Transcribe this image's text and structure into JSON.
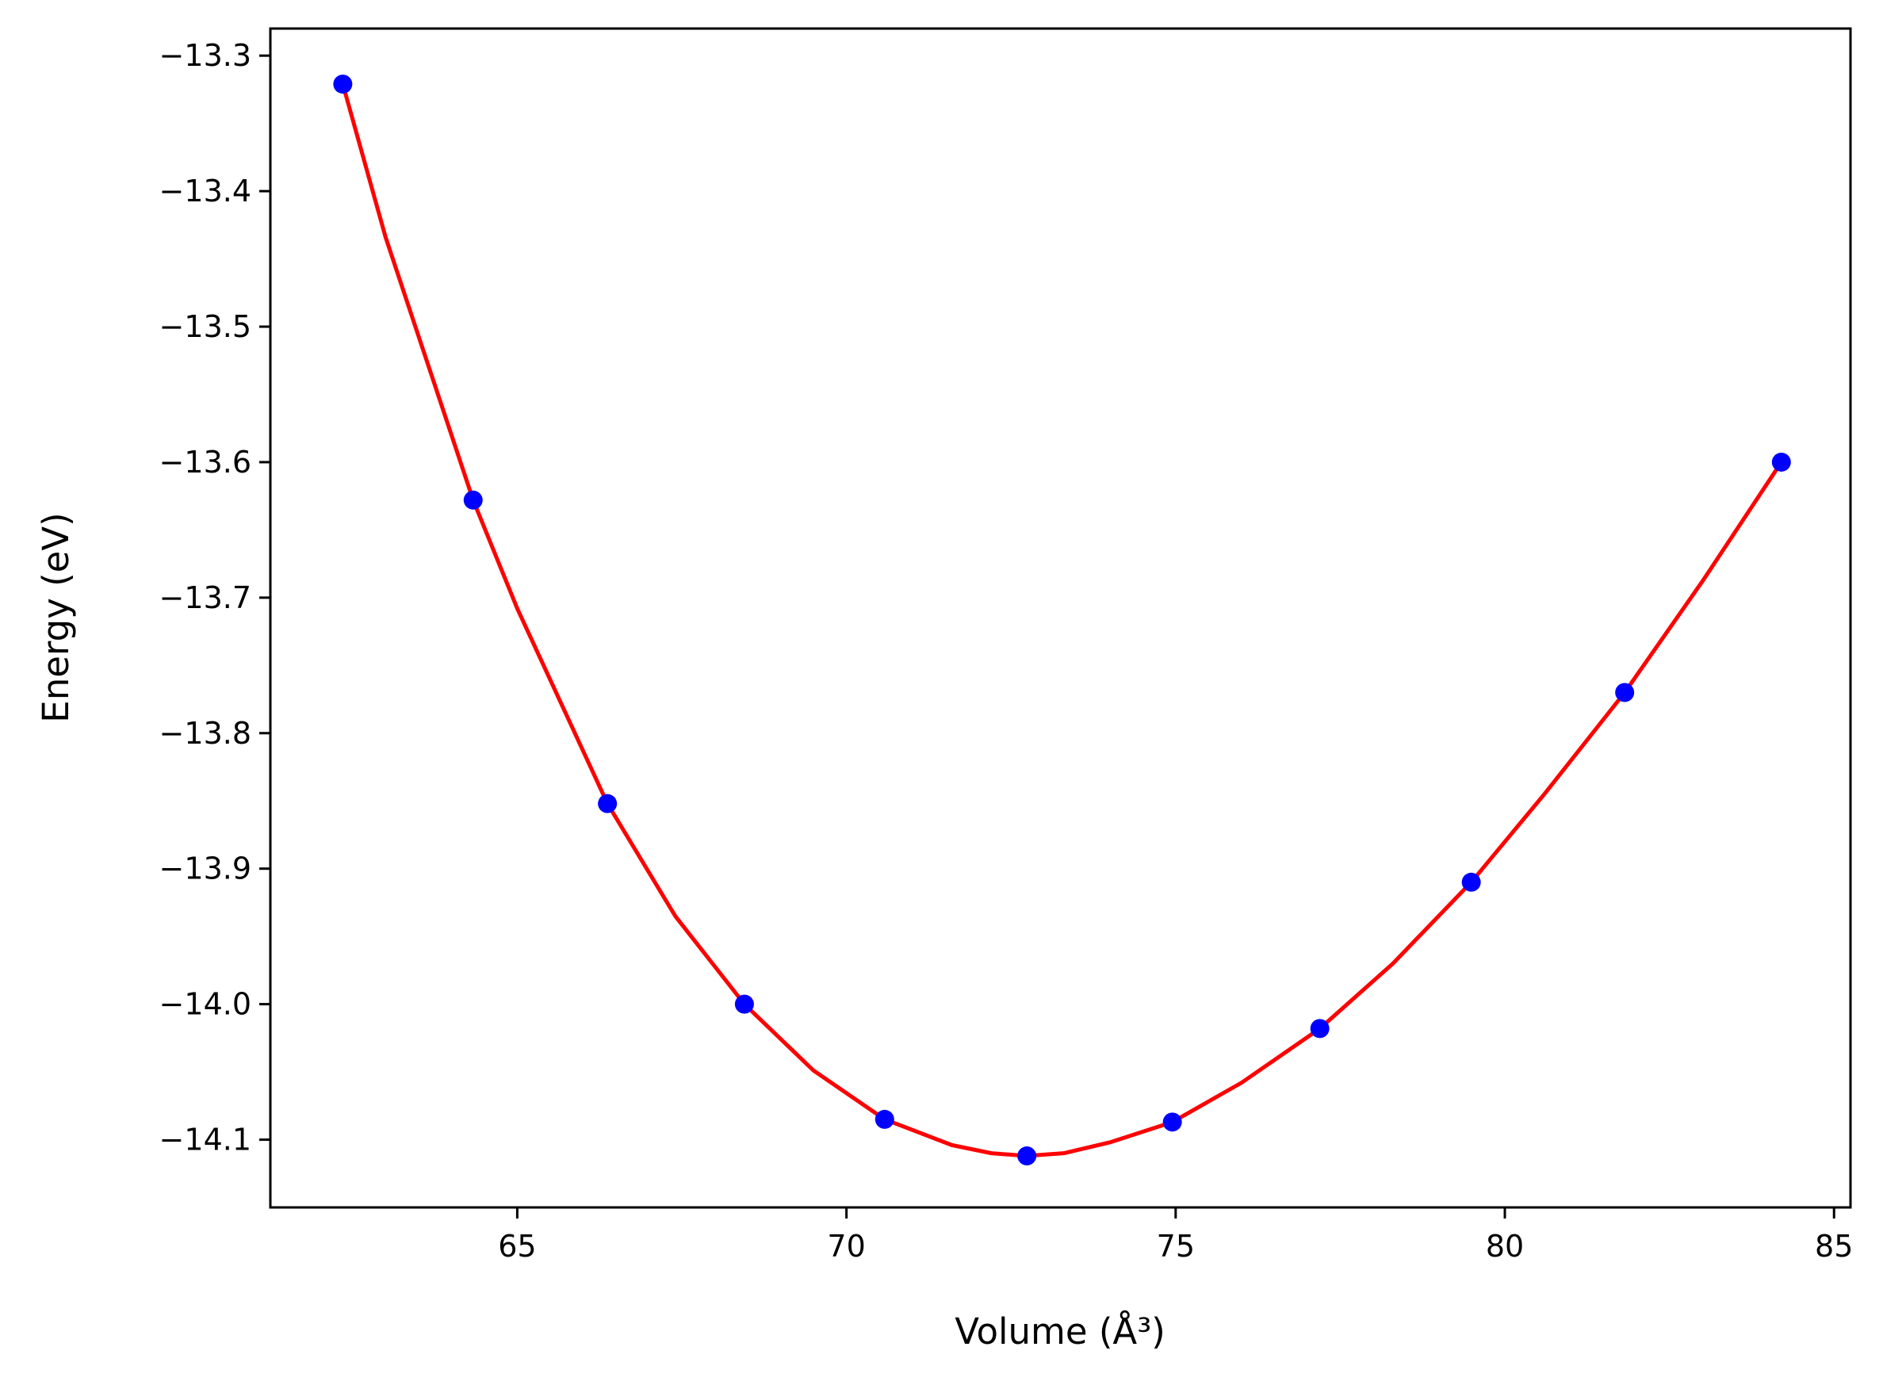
{
  "chart_data": {
    "type": "scatter",
    "xlabel": "Volume (Å³)",
    "ylabel": "Energy (eV)",
    "xlim": [
      61.25,
      85.25
    ],
    "ylim": [
      -14.15,
      -13.28
    ],
    "x_ticks": [
      65,
      70,
      75,
      80,
      85
    ],
    "y_ticks": [
      -13.3,
      -13.4,
      -13.5,
      -13.6,
      -13.7,
      -13.8,
      -13.9,
      -14.0,
      -14.1
    ],
    "x_tick_labels": [
      "65",
      "70",
      "75",
      "80",
      "85"
    ],
    "y_tick_labels": [
      "−13.3",
      "−13.4",
      "−13.5",
      "−13.6",
      "−13.7",
      "−13.8",
      "−13.9",
      "−14.0",
      "−14.1"
    ],
    "grid": false,
    "legend": "none",
    "series": [
      {
        "type": "scatter",
        "color": "#0000ff",
        "points": [
          [
            62.35,
            -13.321
          ],
          [
            64.33,
            -13.628
          ],
          [
            66.37,
            -13.852
          ],
          [
            68.45,
            -14.0
          ],
          [
            70.58,
            -14.085
          ],
          [
            72.74,
            -14.112
          ],
          [
            74.95,
            -14.087
          ],
          [
            77.19,
            -14.018
          ],
          [
            79.49,
            -13.91
          ],
          [
            81.82,
            -13.77
          ],
          [
            84.2,
            -13.6
          ]
        ]
      },
      {
        "type": "line",
        "color": "#ff0000",
        "points": [
          [
            62.35,
            -13.321
          ],
          [
            63.0,
            -13.434
          ],
          [
            64.33,
            -13.628
          ],
          [
            65.0,
            -13.708
          ],
          [
            66.37,
            -13.852
          ],
          [
            67.4,
            -13.935
          ],
          [
            68.45,
            -14.0
          ],
          [
            69.5,
            -14.049
          ],
          [
            70.58,
            -14.085
          ],
          [
            71.6,
            -14.104
          ],
          [
            72.2,
            -14.11
          ],
          [
            72.74,
            -14.112
          ],
          [
            73.3,
            -14.11
          ],
          [
            74.0,
            -14.102
          ],
          [
            74.95,
            -14.087
          ],
          [
            76.0,
            -14.058
          ],
          [
            77.19,
            -14.018
          ],
          [
            78.3,
            -13.97
          ],
          [
            79.49,
            -13.91
          ],
          [
            80.6,
            -13.845
          ],
          [
            81.82,
            -13.77
          ],
          [
            83.0,
            -13.688
          ],
          [
            84.2,
            -13.6
          ]
        ]
      }
    ]
  }
}
